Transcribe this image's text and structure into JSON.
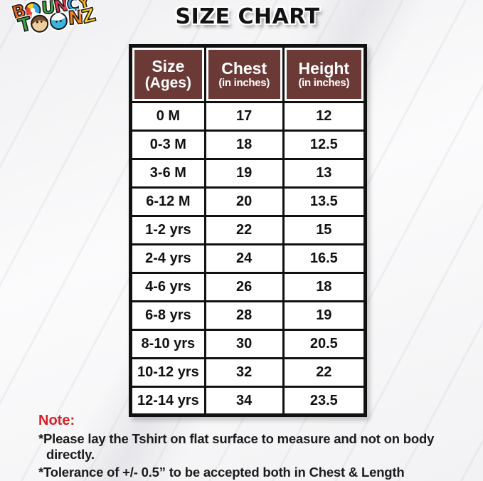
{
  "title": "SIZE CHART",
  "logo": {
    "alt": "BOUNCY TOONZ",
    "line1": [
      {
        "ch": "B",
        "color": "#ef6a1d",
        "name": "logo-letter-b"
      },
      {
        "glyph": "beach-ball",
        "name": "beach-ball-icon"
      },
      {
        "ch": "U",
        "color": "#3fa63f",
        "name": "logo-letter-u"
      },
      {
        "ch": "N",
        "color": "#e23a55",
        "name": "logo-letter-n"
      },
      {
        "ch": "C",
        "color": "#2fa8e0",
        "name": "logo-letter-c"
      },
      {
        "ch": "Y",
        "color": "#fdb515",
        "name": "logo-letter-y"
      }
    ],
    "line2": [
      {
        "ch": "T",
        "color": "#3aa648",
        "name": "logo-letter-t"
      },
      {
        "glyph": "monkey-face",
        "name": "monkey-face-icon"
      },
      {
        "glyph": "blue-face",
        "name": "toon-face-icon"
      },
      {
        "ch": "N",
        "color": "#f6861f",
        "name": "logo-letter-n2"
      },
      {
        "ch": "Z",
        "color": "#ffd21f",
        "name": "logo-letter-z"
      }
    ]
  },
  "table": {
    "headers": [
      {
        "title": "Size",
        "sub": "(Ages)"
      },
      {
        "title": "Chest",
        "sub": "(in inches)"
      },
      {
        "title": "Height",
        "sub": "(in inches)"
      }
    ],
    "rows": [
      [
        "0 M",
        "17",
        "12"
      ],
      [
        "0-3 M",
        "18",
        "12.5"
      ],
      [
        "3-6 M",
        "19",
        "13"
      ],
      [
        "6-12 M",
        "20",
        "13.5"
      ],
      [
        "1-2 yrs",
        "22",
        "15"
      ],
      [
        "2-4 yrs",
        "24",
        "16.5"
      ],
      [
        "4-6 yrs",
        "26",
        "18"
      ],
      [
        "6-8 yrs",
        "28",
        "19"
      ],
      [
        "8-10 yrs",
        "30",
        "20.5"
      ],
      [
        "10-12 yrs",
        "32",
        "22"
      ],
      [
        "12-14 yrs",
        "34",
        "23.5"
      ]
    ]
  },
  "note": {
    "label": "Note:",
    "items": [
      "*Please lay the Tshirt on flat surface to measure and not on body directly.",
      "*Tolerance of +/- 0.5” to be accepted both in Chest & Length"
    ]
  },
  "colors": {
    "header_bg": "#6b3a36",
    "note_red": "#d71f26",
    "table_border": "#111111"
  },
  "chart_data": {
    "type": "table",
    "title": "SIZE CHART",
    "columns": [
      "Size (Ages)",
      "Chest (in inches)",
      "Height (in inches)"
    ],
    "rows": [
      [
        "0 M",
        17,
        12
      ],
      [
        "0-3 M",
        18,
        12.5
      ],
      [
        "3-6 M",
        19,
        13
      ],
      [
        "6-12 M",
        20,
        13.5
      ],
      [
        "1-2 yrs",
        22,
        15
      ],
      [
        "2-4 yrs",
        24,
        16.5
      ],
      [
        "4-6 yrs",
        26,
        18
      ],
      [
        "6-8 yrs",
        28,
        19
      ],
      [
        "8-10 yrs",
        30,
        20.5
      ],
      [
        "10-12 yrs",
        32,
        22
      ],
      [
        "12-14 yrs",
        34,
        23.5
      ]
    ]
  }
}
